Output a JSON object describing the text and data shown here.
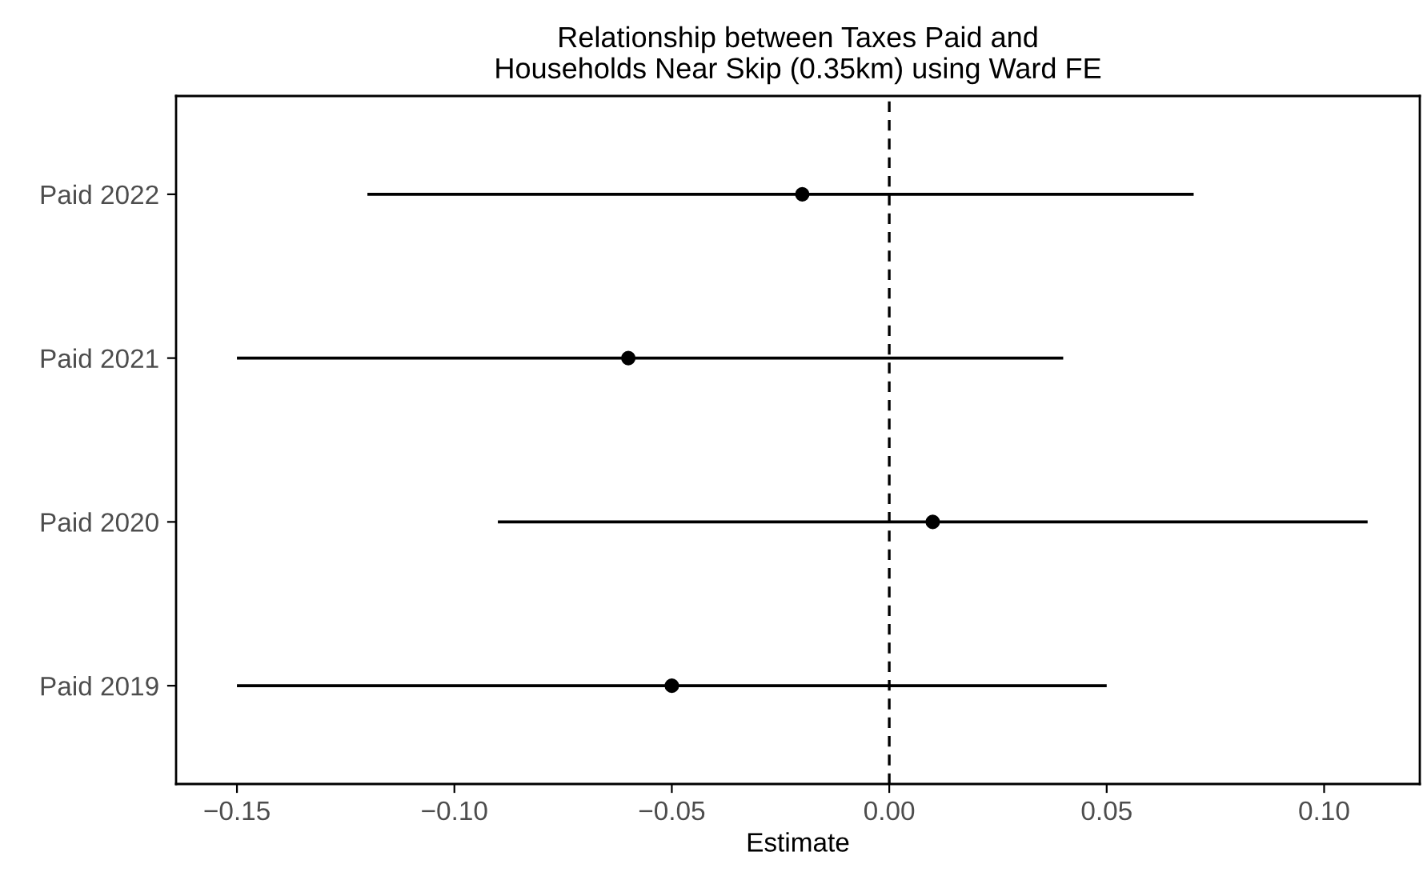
{
  "chart_data": {
    "type": "scatter",
    "orientation": "horizontal",
    "title": "Relationship between Taxes Paid and\nHouseholds Near Skip (0.35km) using Ward FE",
    "xlabel": "Estimate",
    "categories": [
      "Paid 2022",
      "Paid 2021",
      "Paid 2020",
      "Paid 2019"
    ],
    "values": [
      -0.02,
      -0.06,
      0.01,
      -0.05
    ],
    "errors": [
      [
        -0.12,
        0.07
      ],
      [
        -0.15,
        0.04
      ],
      [
        -0.09,
        0.11
      ],
      [
        -0.15,
        0.05
      ]
    ],
    "color": "#000000",
    "marker": "circle",
    "xlim": [
      -0.164,
      0.122
    ],
    "xticks": [
      {
        "value": -0.15,
        "label": "−0.15"
      },
      {
        "value": -0.1,
        "label": "−0.10"
      },
      {
        "value": -0.05,
        "label": "−0.05"
      },
      {
        "value": 0,
        "label": "0.00"
      },
      {
        "value": 0.05,
        "label": "0.05"
      },
      {
        "value": 0.1,
        "label": "0.10"
      }
    ],
    "ref_lines": [
      {
        "axis": "x",
        "value": 0,
        "line_style": "dashed",
        "color": "#000000"
      }
    ],
    "grid": false
  }
}
